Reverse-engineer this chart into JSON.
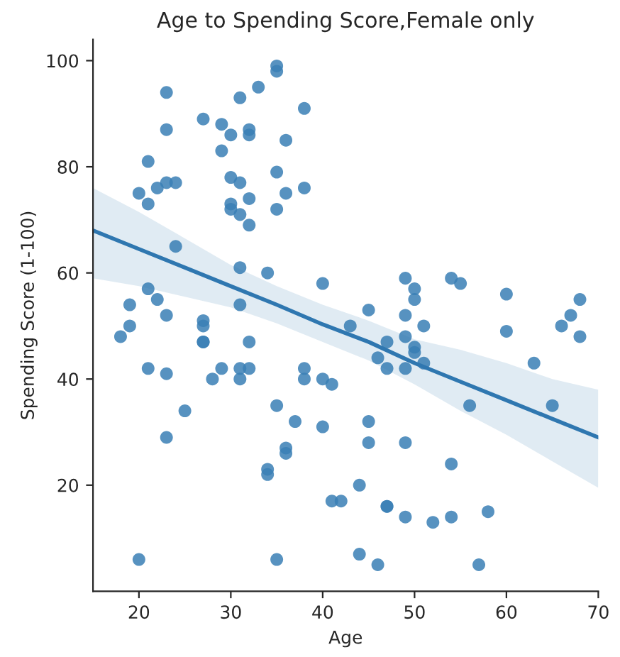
{
  "chart_data": {
    "type": "scatter",
    "title": "Age to Spending Score,Female only",
    "xlabel": "Age",
    "ylabel": "Spending Score (1-100)",
    "xlim": [
      15,
      70
    ],
    "xticks": [
      20,
      30,
      40,
      50,
      60,
      70
    ],
    "ylim": [
      0,
      104
    ],
    "yticks": [
      20,
      40,
      60,
      80,
      100
    ],
    "grid": false,
    "marker": "circle",
    "series": [
      {
        "color": "#3a7fb5",
        "x": [
          23,
          23,
          21,
          20,
          21,
          22,
          23,
          24,
          24,
          21,
          22,
          19,
          23,
          31,
          31,
          34,
          40,
          27,
          29,
          30,
          29,
          31,
          33,
          35,
          35,
          32,
          32,
          36,
          38,
          30,
          31,
          30,
          30,
          31,
          32,
          32,
          35,
          36,
          35,
          38,
          27,
          18,
          19,
          27,
          27,
          27,
          21,
          23,
          28,
          29,
          31,
          31,
          32,
          32,
          25,
          23,
          20,
          35,
          35,
          37,
          36,
          36,
          34,
          34,
          38,
          38,
          40,
          40,
          41,
          41,
          42,
          44,
          44,
          46,
          47,
          47,
          49,
          52,
          54,
          58,
          57,
          54,
          45,
          45,
          49,
          56,
          65,
          63,
          51,
          46,
          47,
          49,
          47,
          49,
          50,
          50,
          43,
          51,
          60,
          66,
          67,
          68,
          45,
          49,
          49,
          50,
          50,
          54,
          55,
          60,
          68
        ],
        "values": [
          94,
          87,
          81,
          75,
          73,
          76,
          77,
          77,
          65,
          57,
          55,
          54,
          52,
          54,
          61,
          60,
          58,
          89,
          88,
          86,
          83,
          93,
          95,
          99,
          98,
          87,
          86,
          85,
          91,
          78,
          77,
          73,
          72,
          71,
          74,
          69,
          79,
          75,
          72,
          76,
          51,
          48,
          50,
          50,
          47,
          47,
          42,
          41,
          40,
          42,
          42,
          40,
          42,
          47,
          34,
          29,
          6,
          6,
          35,
          32,
          27,
          26,
          23,
          22,
          42,
          40,
          40,
          31,
          39,
          17,
          17,
          20,
          7,
          5,
          16,
          16,
          14,
          13,
          14,
          15,
          5,
          24,
          32,
          28,
          28,
          35,
          35,
          43,
          43,
          44,
          42,
          42,
          47,
          48,
          46,
          45,
          50,
          50,
          49,
          50,
          52,
          48,
          53,
          52,
          59,
          57,
          55,
          59,
          58,
          56,
          55
        ]
      },
      {
        "type": "line",
        "color": "#2f77b0",
        "line_style": "solid",
        "marker": "none",
        "x": [
          15,
          20,
          25,
          30,
          35,
          40,
          45,
          50,
          55,
          60,
          65,
          70
        ],
        "values": [
          68,
          64.5,
          61,
          57.5,
          54,
          50.3,
          47,
          43,
          39.5,
          36,
          32.5,
          29
        ],
        "lower": [
          59,
          57.5,
          55.5,
          53.5,
          50.5,
          47,
          43.5,
          39,
          34,
          29.5,
          24.5,
          19.5
        ],
        "upper": [
          76,
          71.5,
          66.5,
          61.5,
          57.5,
          54,
          51,
          47.5,
          45.5,
          43,
          40,
          38
        ]
      }
    ]
  }
}
